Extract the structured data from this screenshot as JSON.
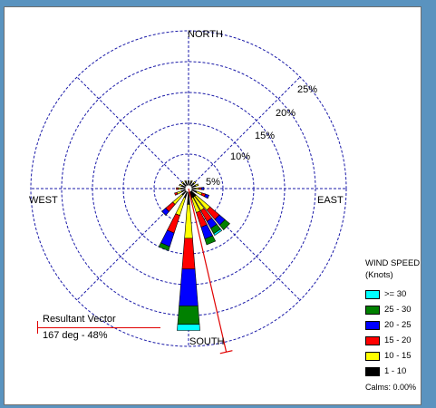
{
  "chart_data": {
    "type": "wind-rose",
    "directions": {
      "north": "NORTH",
      "south": "SOUTH",
      "east": "EAST",
      "west": "WEST"
    },
    "ring_labels": [
      "5%",
      "10%",
      "15%",
      "20%",
      "25%"
    ],
    "ring_values": [
      5,
      10,
      15,
      20,
      25
    ],
    "legend": {
      "title_line1": "WIND SPEED",
      "title_line2": "(Knots)",
      "bins": [
        {
          "label": ">= 30",
          "color": "#00ffff"
        },
        {
          "label": "25 - 30",
          "color": "#008000"
        },
        {
          "label": "20 - 25",
          "color": "#0000ff"
        },
        {
          "label": "15 - 20",
          "color": "#ff0000"
        },
        {
          "label": "10 - 15",
          "color": "#ffff00"
        },
        {
          "label": "1 - 10",
          "color": "#000000"
        }
      ],
      "calms": "Calms: 0.00%"
    },
    "resultant_vector": {
      "title": "Resultant Vector",
      "value": "167 deg - 48%",
      "direction_deg": 167
    },
    "petal_bin_order": [
      "1 - 10",
      "10 - 15",
      "15 - 20",
      "20 - 25",
      "25 - 30",
      ">= 30"
    ],
    "petals": [
      {
        "dir": 0,
        "values": [
          0.7
        ]
      },
      {
        "dir": 22.5,
        "values": [
          0.6,
          0.2
        ]
      },
      {
        "dir": 45,
        "values": [
          0.6,
          0.3
        ]
      },
      {
        "dir": 67.5,
        "values": [
          0.6,
          0.5
        ]
      },
      {
        "dir": 90,
        "values": [
          0.5,
          0.6,
          0.4,
          0.4
        ]
      },
      {
        "dir": 112.5,
        "values": [
          0.8,
          0.9,
          0.6,
          0.6
        ]
      },
      {
        "dir": 135,
        "values": [
          1.0,
          3.0,
          2.0,
          1.2,
          1.0
        ]
      },
      {
        "dir": 146.25,
        "values": [
          1.0,
          2.5,
          2.0,
          1.3,
          1.0,
          0.3
        ]
      },
      {
        "dir": 157.5,
        "values": [
          1.0,
          2.5,
          2.5,
          2.0,
          1.0
        ]
      },
      {
        "dir": 180,
        "values": [
          2.0,
          5.5,
          5.0,
          6.0,
          3.0,
          1.0
        ]
      },
      {
        "dir": 202.5,
        "values": [
          1.0,
          3.0,
          3.0,
          2.3,
          0.7
        ]
      },
      {
        "dir": 225,
        "values": [
          0.8,
          2.0,
          1.5,
          0.8
        ]
      },
      {
        "dir": 247.5,
        "values": [
          0.6,
          0.8,
          0.4
        ]
      },
      {
        "dir": 270,
        "values": [
          0.6,
          0.5,
          0.3
        ]
      },
      {
        "dir": 292.5,
        "values": [
          0.6,
          0.4
        ]
      },
      {
        "dir": 315,
        "values": [
          0.6,
          0.3
        ]
      },
      {
        "dir": 337.5,
        "values": [
          0.6,
          0.2
        ]
      }
    ]
  }
}
